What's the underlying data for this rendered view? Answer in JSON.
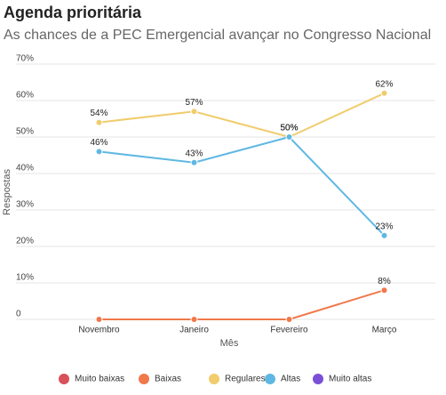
{
  "chart_data": {
    "type": "line",
    "title": "Agenda prioritária",
    "subtitle": "As chances de a PEC Emergencial avançar no Congresso Nacional",
    "x_label": "Mês",
    "y_label": "Respostas",
    "categories": [
      "Novembro",
      "Janeiro",
      "Fevereiro",
      "Março"
    ],
    "ylim": [
      0,
      70
    ],
    "yticks": [
      0,
      {
        "value": 10,
        "label": "10%"
      },
      {
        "value": 20,
        "label": "20%"
      },
      {
        "value": 30,
        "label": "30%"
      },
      {
        "value": 40,
        "label": "40%"
      },
      {
        "value": 50,
        "label": "50%"
      },
      {
        "value": 60,
        "label": "60%"
      },
      {
        "value": 70,
        "label": "70%"
      }
    ],
    "grid": true,
    "legend": "bottom",
    "series": [
      {
        "name": "Muito baixas",
        "color": "#d9505a",
        "values": [
          null,
          null,
          null,
          null
        ]
      },
      {
        "name": "Baixas",
        "color": "#f0784a",
        "values": [
          0,
          0,
          0,
          8
        ],
        "value_labels": [
          null,
          null,
          null,
          "8%"
        ]
      },
      {
        "name": "Regulares",
        "color": "#f0cc6c",
        "values": [
          54,
          57,
          50,
          62
        ],
        "value_labels": [
          "54%",
          "57%",
          "50%",
          "62%"
        ]
      },
      {
        "name": "Altas",
        "color": "#5fb8e3",
        "values": [
          46,
          43,
          50,
          23
        ],
        "value_labels": [
          "46%",
          "43%",
          "50%",
          "23%"
        ]
      },
      {
        "name": "Muito altas",
        "color": "#7a4fd6",
        "values": [
          null,
          null,
          null,
          null
        ]
      }
    ]
  }
}
